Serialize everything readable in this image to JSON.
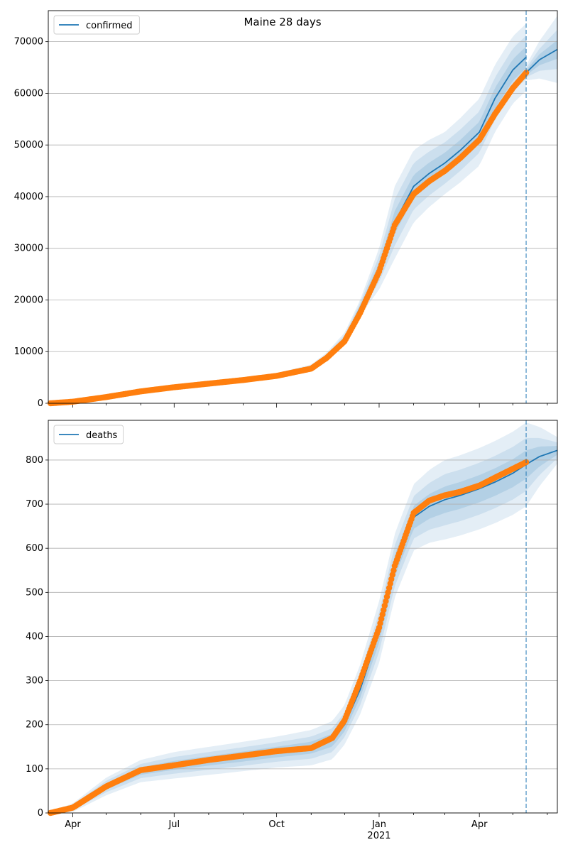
{
  "figure": {
    "suptitle": "Maine 28 days"
  },
  "colors": {
    "line": "#1f77b4",
    "band": "#1f77b4",
    "observed": "#ff7f0e",
    "grid": "#b0b0b0",
    "vline": "#1f77b4"
  },
  "chart_data": [
    {
      "type": "line",
      "panel": "top",
      "legend": "top-left",
      "ylim": [
        0,
        76000
      ],
      "xlim": [
        "2020-03-10",
        "2021-06-10"
      ],
      "grid": "y",
      "yticks": [
        0,
        10000,
        20000,
        30000,
        40000,
        50000,
        60000,
        70000
      ],
      "forecast_start": "2021-05-13",
      "series": [
        {
          "name": "confirmed",
          "kind": "model",
          "points": [
            [
              "2020-03-10",
              0
            ],
            [
              "2020-04-01",
              400
            ],
            [
              "2020-05-01",
              1400
            ],
            [
              "2020-06-01",
              2500
            ],
            [
              "2020-07-01",
              3200
            ],
            [
              "2020-08-01",
              3900
            ],
            [
              "2020-09-01",
              4600
            ],
            [
              "2020-10-01",
              5400
            ],
            [
              "2020-11-01",
              7000
            ],
            [
              "2020-11-15",
              9000
            ],
            [
              "2020-12-01",
              12500
            ],
            [
              "2020-12-15",
              18500
            ],
            [
              "2021-01-01",
              26000
            ],
            [
              "2021-01-15",
              35000
            ],
            [
              "2021-02-01",
              42000
            ],
            [
              "2021-02-15",
              44500
            ],
            [
              "2021-03-01",
              46500
            ],
            [
              "2021-03-15",
              49000
            ],
            [
              "2021-04-01",
              52500
            ],
            [
              "2021-04-15",
              59000
            ],
            [
              "2021-05-01",
              64500
            ],
            [
              "2021-05-13",
              67000
            ],
            [
              "2021-05-13",
              64000
            ],
            [
              "2021-05-25",
              66500
            ],
            [
              "2021-06-10",
              68500
            ]
          ]
        },
        {
          "name": "",
          "kind": "observed",
          "points": [
            [
              "2020-03-12",
              0
            ],
            [
              "2020-04-01",
              300
            ],
            [
              "2020-05-01",
              1200
            ],
            [
              "2020-06-01",
              2300
            ],
            [
              "2020-07-01",
              3100
            ],
            [
              "2020-08-01",
              3800
            ],
            [
              "2020-09-01",
              4500
            ],
            [
              "2020-10-01",
              5300
            ],
            [
              "2020-11-01",
              6700
            ],
            [
              "2020-11-15",
              8800
            ],
            [
              "2020-12-01",
              12000
            ],
            [
              "2020-12-15",
              17500
            ],
            [
              "2021-01-01",
              25500
            ],
            [
              "2021-01-15",
              34500
            ],
            [
              "2021-02-01",
              40500
            ],
            [
              "2021-02-15",
              43000
            ],
            [
              "2021-03-01",
              45000
            ],
            [
              "2021-03-15",
              47500
            ],
            [
              "2021-04-01",
              51000
            ],
            [
              "2021-04-15",
              56000
            ],
            [
              "2021-05-01",
              61000
            ],
            [
              "2021-05-13",
              64000
            ]
          ]
        }
      ],
      "bands": [
        {
          "level": "outer",
          "halfwidth": [
            [
              "2020-03-10",
              200
            ],
            [
              "2020-11-01",
              500
            ],
            [
              "2020-12-15",
              1500
            ],
            [
              "2021-01-01",
              4000
            ],
            [
              "2021-01-15",
              7000
            ],
            [
              "2021-02-01",
              7000
            ],
            [
              "2021-03-01",
              6000
            ],
            [
              "2021-04-01",
              6500
            ],
            [
              "2021-05-13",
              6500
            ],
            [
              "2021-05-13",
              1500
            ],
            [
              "2021-06-10",
              6500
            ]
          ]
        },
        {
          "level": "middle",
          "halfwidth": [
            [
              "2020-03-10",
              120
            ],
            [
              "2020-11-01",
              300
            ],
            [
              "2020-12-15",
              900
            ],
            [
              "2021-01-01",
              2500
            ],
            [
              "2021-01-15",
              4500
            ],
            [
              "2021-02-01",
              4500
            ],
            [
              "2021-03-01",
              4000
            ],
            [
              "2021-04-01",
              4000
            ],
            [
              "2021-05-13",
              4200
            ],
            [
              "2021-05-13",
              900
            ],
            [
              "2021-06-10",
              3800
            ]
          ]
        },
        {
          "level": "inner",
          "halfwidth": [
            [
              "2020-03-10",
              60
            ],
            [
              "2020-11-01",
              150
            ],
            [
              "2020-12-15",
              450
            ],
            [
              "2021-01-01",
              1200
            ],
            [
              "2021-01-15",
              2200
            ],
            [
              "2021-02-01",
              2200
            ],
            [
              "2021-03-01",
              2000
            ],
            [
              "2021-04-01",
              2000
            ],
            [
              "2021-05-13",
              2100
            ],
            [
              "2021-05-13",
              500
            ],
            [
              "2021-06-10",
              1800
            ]
          ]
        }
      ]
    },
    {
      "type": "line",
      "panel": "bottom",
      "legend": "top-left",
      "ylim": [
        0,
        890
      ],
      "xlim": [
        "2020-03-10",
        "2021-06-10"
      ],
      "grid": "y",
      "yticks": [
        0,
        100,
        200,
        300,
        400,
        500,
        600,
        700,
        800
      ],
      "xticks": [
        "2020-04-01",
        "2020-07-01",
        "2020-10-01",
        "2021-01-01",
        "2021-04-01"
      ],
      "xticklabels": [
        "Apr",
        "Jul",
        "Oct",
        "Jan",
        "Apr"
      ],
      "xticks_sub": {
        "2021-01-01": "2021"
      },
      "forecast_start": "2021-05-13",
      "series": [
        {
          "name": "deaths",
          "kind": "model",
          "points": [
            [
              "2020-03-10",
              0
            ],
            [
              "2020-04-01",
              12
            ],
            [
              "2020-05-01",
              60
            ],
            [
              "2020-06-01",
              95
            ],
            [
              "2020-07-01",
              108
            ],
            [
              "2020-08-01",
              118
            ],
            [
              "2020-09-01",
              128
            ],
            [
              "2020-10-01",
              138
            ],
            [
              "2020-11-01",
              148
            ],
            [
              "2020-11-20",
              165
            ],
            [
              "2020-12-01",
              200
            ],
            [
              "2020-12-15",
              280
            ],
            [
              "2021-01-01",
              410
            ],
            [
              "2021-01-15",
              560
            ],
            [
              "2021-02-01",
              670
            ],
            [
              "2021-02-15",
              695
            ],
            [
              "2021-03-01",
              710
            ],
            [
              "2021-03-15",
              720
            ],
            [
              "2021-04-01",
              735
            ],
            [
              "2021-04-15",
              750
            ],
            [
              "2021-05-01",
              770
            ],
            [
              "2021-05-13",
              790
            ],
            [
              "2021-05-25",
              808
            ],
            [
              "2021-06-10",
              822
            ]
          ]
        },
        {
          "name": "",
          "kind": "observed",
          "points": [
            [
              "2020-03-12",
              0
            ],
            [
              "2020-04-01",
              12
            ],
            [
              "2020-05-01",
              60
            ],
            [
              "2020-06-01",
              97
            ],
            [
              "2020-07-01",
              108
            ],
            [
              "2020-08-01",
              120
            ],
            [
              "2020-09-01",
              130
            ],
            [
              "2020-10-01",
              140
            ],
            [
              "2020-11-01",
              147
            ],
            [
              "2020-11-20",
              170
            ],
            [
              "2020-12-01",
              210
            ],
            [
              "2020-12-15",
              300
            ],
            [
              "2021-01-01",
              420
            ],
            [
              "2021-01-15",
              560
            ],
            [
              "2021-02-01",
              680
            ],
            [
              "2021-02-15",
              708
            ],
            [
              "2021-03-01",
              720
            ],
            [
              "2021-03-15",
              728
            ],
            [
              "2021-04-01",
              742
            ],
            [
              "2021-04-15",
              760
            ],
            [
              "2021-05-01",
              780
            ],
            [
              "2021-05-13",
              795
            ]
          ]
        }
      ],
      "bands": [
        {
          "level": "outer",
          "halfwidth": [
            [
              "2020-03-10",
              2
            ],
            [
              "2020-05-01",
              20
            ],
            [
              "2020-07-01",
              30
            ],
            [
              "2020-10-01",
              35
            ],
            [
              "2020-12-01",
              45
            ],
            [
              "2021-01-01",
              70
            ],
            [
              "2021-02-01",
              75
            ],
            [
              "2021-03-01",
              90
            ],
            [
              "2021-05-13",
              95
            ],
            [
              "2021-06-10",
              30
            ]
          ]
        },
        {
          "level": "middle",
          "halfwidth": [
            [
              "2020-03-10",
              1
            ],
            [
              "2020-05-01",
              13
            ],
            [
              "2020-07-01",
              19
            ],
            [
              "2020-10-01",
              22
            ],
            [
              "2020-12-01",
              28
            ],
            [
              "2021-01-01",
              45
            ],
            [
              "2021-02-01",
              48
            ],
            [
              "2021-03-01",
              58
            ],
            [
              "2021-05-13",
              60
            ],
            [
              "2021-06-10",
              18
            ]
          ]
        },
        {
          "level": "inner",
          "halfwidth": [
            [
              "2020-03-10",
              0.5
            ],
            [
              "2020-05-01",
              7
            ],
            [
              "2020-07-01",
              10
            ],
            [
              "2020-10-01",
              12
            ],
            [
              "2020-12-01",
              15
            ],
            [
              "2021-01-01",
              24
            ],
            [
              "2021-02-01",
              26
            ],
            [
              "2021-03-01",
              30
            ],
            [
              "2021-05-13",
              32
            ],
            [
              "2021-06-10",
              10
            ]
          ]
        }
      ]
    }
  ]
}
